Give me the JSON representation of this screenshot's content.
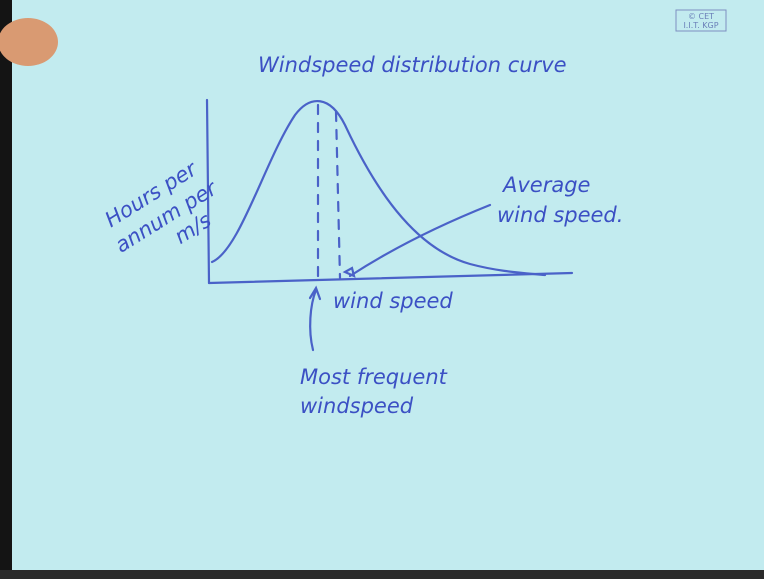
{
  "logo": {
    "lines": [
      "© CET",
      "I.I.T. KGP"
    ]
  },
  "diagram": {
    "title": "Windspeed distribution curve",
    "y_label": [
      "Hours per",
      "annum per",
      "m/s"
    ],
    "x_label": "wind speed",
    "annotations": {
      "average": [
        "Average",
        "wind speed."
      ],
      "most_frequent": [
        "Most frequent",
        "windspeed"
      ]
    }
  }
}
